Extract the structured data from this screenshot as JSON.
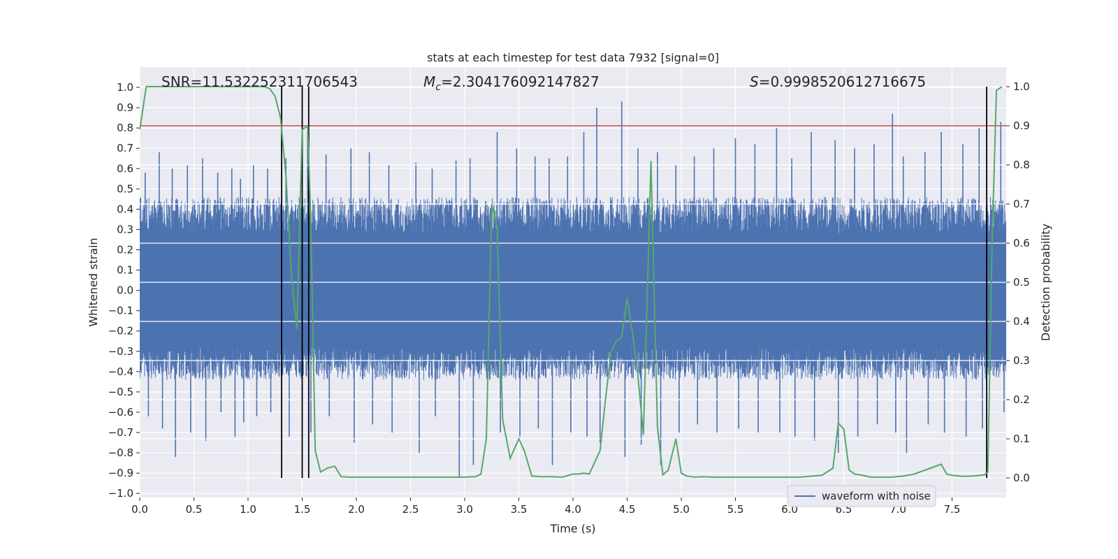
{
  "chart_data": {
    "type": "line",
    "title": "stats at each timestep for test data 7932 [signal=0]",
    "xlabel": "Time (s)",
    "ylabel": "Whitened strain",
    "y2label": "Detection probability",
    "xlim": [
      0.0,
      8.0
    ],
    "ylim": [
      -1.02,
      1.1
    ],
    "y2lim": [
      -0.05,
      1.05
    ],
    "xticks": [
      "0.0",
      "0.5",
      "1.0",
      "1.5",
      "2.0",
      "2.5",
      "3.0",
      "3.5",
      "4.0",
      "4.5",
      "5.0",
      "5.5",
      "6.0",
      "6.5",
      "7.0",
      "7.5"
    ],
    "yticks": [
      "−1.0",
      "−0.9",
      "−0.8",
      "−0.7",
      "−0.6",
      "−0.5",
      "−0.4",
      "−0.3",
      "−0.2",
      "−0.1",
      "0.0",
      "0.1",
      "0.2",
      "0.3",
      "0.4",
      "0.5",
      "0.6",
      "0.7",
      "0.8",
      "0.9",
      "1.0"
    ],
    "y2ticks": [
      "0.0",
      "0.1",
      "0.2",
      "0.3",
      "0.4",
      "0.5",
      "0.6",
      "0.7",
      "0.8",
      "0.9",
      "1.0"
    ],
    "grid": true,
    "legend": {
      "placement": "bottom-right",
      "entries": [
        "waveform with noise"
      ]
    },
    "annotations": {
      "snr": "SNR=11.532252311706543",
      "mc_symbol": "M",
      "mc_sub": "c",
      "mc_value": "=2.304176092147827",
      "s_symbol": "S",
      "s_value": "=0.9998520612716675"
    },
    "threshold_line": {
      "y2": 0.9,
      "color": "#c44e52"
    },
    "vertical_lines_x": [
      1.31,
      1.5,
      1.56,
      7.82
    ],
    "vertical_lines_y2_range": [
      0.0,
      1.0
    ],
    "series": [
      {
        "name": "waveform with noise",
        "color": "#4c72b0",
        "axis": "left",
        "note_envelope": "dense noisy waveform, approximately within ±0.45 with spikes",
        "spikes_x": [
          0.05,
          0.18,
          0.3,
          0.44,
          0.58,
          0.72,
          0.85,
          0.93,
          1.05,
          1.18,
          1.35,
          1.55,
          1.72,
          1.95,
          2.12,
          2.3,
          2.55,
          2.7,
          2.92,
          3.05,
          3.3,
          3.48,
          3.65,
          3.78,
          3.95,
          4.1,
          4.22,
          4.45,
          4.6,
          4.78,
          4.95,
          5.12,
          5.3,
          5.5,
          5.68,
          5.88,
          6.02,
          6.2,
          6.42,
          6.6,
          6.78,
          6.95,
          7.05,
          7.25,
          7.4,
          7.6,
          7.75,
          7.95
        ],
        "spikes_y": [
          0.58,
          0.68,
          0.6,
          0.62,
          0.65,
          0.58,
          0.6,
          0.55,
          0.62,
          0.6,
          0.65,
          0.78,
          0.67,
          0.7,
          0.68,
          0.62,
          0.63,
          0.6,
          0.64,
          0.65,
          0.78,
          0.7,
          0.66,
          0.65,
          0.66,
          0.78,
          0.9,
          0.93,
          0.7,
          0.68,
          0.62,
          0.66,
          0.7,
          0.75,
          0.72,
          0.8,
          0.65,
          0.78,
          0.74,
          0.7,
          0.72,
          0.87,
          0.66,
          0.68,
          0.78,
          0.72,
          0.8,
          0.83
        ],
        "dips_y": [
          -0.62,
          -0.68,
          -0.82,
          -0.7,
          -0.74,
          -0.6,
          -0.72,
          -0.65,
          -0.62,
          -0.6,
          -0.72,
          -0.7,
          -0.62,
          -0.75,
          -0.66,
          -0.7,
          -0.8,
          -0.62,
          -0.92,
          -0.86,
          -0.7,
          -0.72,
          -0.68,
          -0.86,
          -0.7,
          -0.72,
          -0.75,
          -0.82,
          -0.76,
          -0.86,
          -0.7,
          -0.66,
          -0.7,
          -0.68,
          -0.7,
          -0.7,
          -0.72,
          -0.74,
          -0.8,
          -0.72,
          -0.66,
          -0.7,
          -0.8,
          -0.66,
          -0.7,
          -0.72,
          -0.68,
          -0.6
        ]
      },
      {
        "name": "",
        "color": "#55a868",
        "axis": "right",
        "x": [
          0.0,
          0.06,
          0.12,
          0.2,
          0.3,
          0.4,
          0.5,
          0.6,
          0.7,
          0.8,
          0.9,
          1.0,
          1.05,
          1.1,
          1.15,
          1.2,
          1.25,
          1.3,
          1.35,
          1.4,
          1.45,
          1.5,
          1.55,
          1.58,
          1.62,
          1.67,
          1.73,
          1.8,
          1.86,
          1.93,
          2.0,
          2.2,
          2.4,
          2.6,
          2.8,
          3.0,
          3.1,
          3.15,
          3.2,
          3.25,
          3.3,
          3.35,
          3.42,
          3.5,
          3.55,
          3.62,
          3.7,
          3.8,
          3.9,
          4.0,
          4.05,
          4.1,
          4.15,
          4.25,
          4.3,
          4.35,
          4.4,
          4.45,
          4.5,
          4.55,
          4.6,
          4.65,
          4.72,
          4.78,
          4.83,
          4.88,
          4.95,
          5.0,
          5.05,
          5.12,
          5.2,
          5.3,
          5.5,
          5.7,
          5.9,
          6.1,
          6.3,
          6.4,
          6.45,
          6.5,
          6.55,
          6.6,
          6.65,
          6.75,
          6.85,
          6.95,
          7.05,
          7.15,
          7.3,
          7.4,
          7.45,
          7.5,
          7.6,
          7.7,
          7.8,
          7.83,
          7.87,
          7.91,
          7.96
        ],
        "y": [
          0.89,
          1.0,
          1.0,
          1.0,
          1.0,
          1.0,
          1.0,
          1.0,
          1.0,
          1.0,
          1.0,
          1.0,
          1.0,
          1.0,
          1.0,
          0.995,
          0.975,
          0.92,
          0.77,
          0.52,
          0.38,
          0.89,
          0.9,
          0.65,
          0.07,
          0.015,
          0.025,
          0.03,
          0.003,
          0.002,
          0.002,
          0.002,
          0.002,
          0.002,
          0.002,
          0.002,
          0.003,
          0.01,
          0.1,
          0.7,
          0.64,
          0.15,
          0.05,
          0.1,
          0.07,
          0.005,
          0.003,
          0.003,
          0.002,
          0.01,
          0.01,
          0.012,
          0.01,
          0.07,
          0.2,
          0.32,
          0.35,
          0.36,
          0.46,
          0.37,
          0.26,
          0.11,
          0.81,
          0.13,
          0.008,
          0.02,
          0.1,
          0.012,
          0.005,
          0.002,
          0.003,
          0.002,
          0.002,
          0.002,
          0.002,
          0.002,
          0.007,
          0.025,
          0.14,
          0.125,
          0.02,
          0.01,
          0.008,
          0.002,
          0.002,
          0.002,
          0.005,
          0.01,
          0.025,
          0.035,
          0.01,
          0.007,
          0.004,
          0.005,
          0.008,
          0.015,
          0.6,
          0.99,
          1.0
        ]
      }
    ]
  }
}
